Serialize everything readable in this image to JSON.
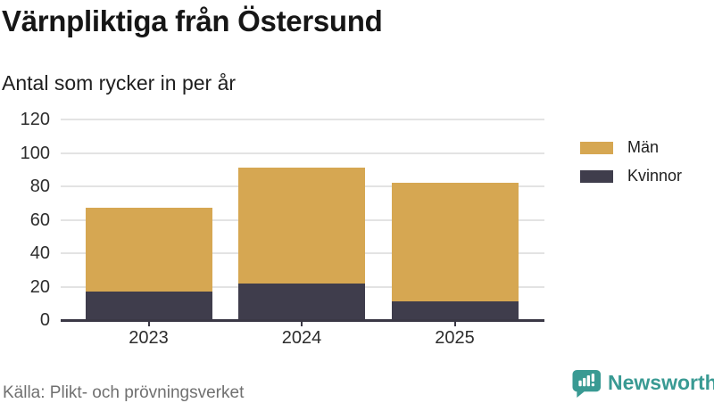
{
  "header": {
    "title": "Värnpliktiga från Östersund",
    "subtitle": "Antal som rycker in per år"
  },
  "chart_data": {
    "type": "bar",
    "stacked": true,
    "title": "Värnpliktiga från Östersund",
    "subtitle": "Antal som rycker in per år",
    "categories": [
      "2023",
      "2024",
      "2025"
    ],
    "series": [
      {
        "name": "Män",
        "color": "#d6a752",
        "values": [
          50,
          69,
          71
        ]
      },
      {
        "name": "Kvinnor",
        "color": "#3f3d4c",
        "values": [
          17,
          22,
          11
        ]
      }
    ],
    "stack_bottom_series": "Kvinnor",
    "totals": [
      67,
      91,
      82
    ],
    "xlabel": "",
    "ylabel": "",
    "ylim": [
      0,
      120
    ],
    "y_ticks": [
      0,
      20,
      40,
      60,
      80,
      100,
      120
    ],
    "grid": "horizontal",
    "legend_position": "right"
  },
  "footer": {
    "source": "Källa: Plikt- och prövningsverket",
    "brand": "Newsworthy",
    "brand_color": "#399a93"
  }
}
